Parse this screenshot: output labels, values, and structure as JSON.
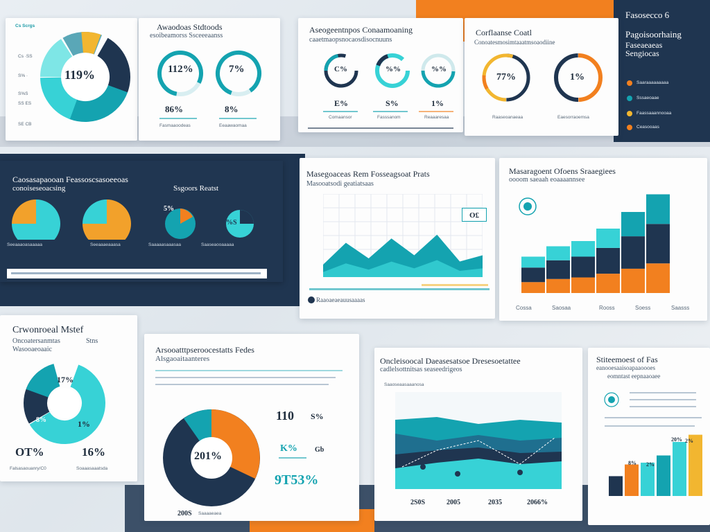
{
  "colors": {
    "navy": "#1f3550",
    "teal": "#14a3b0",
    "cyan": "#37d2d6",
    "orange": "#f2801f",
    "yellow": "#f2b630",
    "slate": "#5f7a93"
  },
  "card1": {
    "tag": "Cs Scrgs",
    "center": "119%",
    "labels": [
      "Cs ·SS",
      "S% ·",
      "S%S",
      "SS ES",
      "SE CB"
    ]
  },
  "card2": {
    "title": "Awaodoas Stdtoods",
    "subtitle": "esoibeamorss Ssceeeaanss",
    "gauge1": "112%",
    "gauge2": "7%",
    "value1": "86%",
    "value2": "8%",
    "caption1": "Fasmaaoodeas",
    "caption2": "Eeaawaomaa"
  },
  "card3": {
    "title": "Aseogeentnpos Conaamoaning",
    "subtitle": "caaetmaopsnocaosdisocnuuns",
    "g1": "C%",
    "g2": "%%",
    "g3": "%%",
    "v1": "E%",
    "v2": "S%",
    "v3": "1%",
    "c1": "Comaansor",
    "c2": "Fasssanom",
    "c3": "Reaaaresaa"
  },
  "card4": {
    "title": "Corflaanse Coatl",
    "subtitle": "Conoatesmosimtaaatmsoaodiine",
    "g1": "77%",
    "g2": "1%",
    "c1": "Raaseoanaeaa",
    "c2": "Eaesorraoemsa"
  },
  "card5": {
    "title": "Fasosecco 6",
    "subtitle": "Pagoisoorhaing",
    "subtitle2": "Faseaeaeas",
    "subtitle3": "Sengiocas",
    "legend": [
      "Saaraaaaaaaaa",
      "Sssaeoaae",
      "Faassaaannooaa",
      "Ceasooaas"
    ]
  },
  "card6": {
    "title": "Caosasapaooan Feassoscsasoeeoas",
    "subtitle": "conoiseseoacsing",
    "right": "Ssgoors Reatst",
    "pct": "5%",
    "pct2": "%S",
    "captions": [
      "Seeaaaoasaaaaa",
      "Seeaaaeaaasa",
      "Saaaaasaaasaa",
      "Saaseaooaaaaa"
    ]
  },
  "card7": {
    "title": "Masegoaceas Rem Fosseagsoat Prats",
    "subtitle": "Masooatsodi geatiatsaas",
    "badge": "O£",
    "footer": "Raaoaeaeauusaaaas"
  },
  "card8": {
    "title": "Masaragoent Ofoens Sraaegiees",
    "subtitle": "oooom saeaah eoaaaannsee",
    "xlabels": [
      "Cossa",
      "Saosaa",
      "Rooss",
      "Soess",
      "Saasss"
    ]
  },
  "card9": {
    "title": "Crwonroeal Mstef",
    "sub1": "Oncoatersanmtas",
    "sub1b": "Stns",
    "sub2": "Wasooaeoaaic",
    "v1": "17%",
    "v2": "1%",
    "v3": "8%",
    "big1": "OT%",
    "big2": "16%",
    "cap1": "Falsasaouanry/C0",
    "cap2": "Soaaasaaatsda"
  },
  "card10": {
    "title": "Arsooatttpseroocestatts Fedes",
    "subtitle": "Alsgaoaitaanteres",
    "center": "201%",
    "v1": "110",
    "v2": "S%",
    "v3": "K%",
    "v4": "Gb",
    "v5": "9T53%",
    "footer": "200S",
    "footer2": "Saaaaeaea"
  },
  "card11": {
    "title": "Oncleisoocal Daeasesatsoe Dresesoetattee",
    "subtitle": "cadlelsottnitsas seaseedrigeos",
    "tag": "Saaoseaasaaanosa",
    "xlabels": [
      "2S0S",
      "2005",
      "2035",
      "2066%"
    ]
  },
  "card12": {
    "title": "Stiteemoest of Fas",
    "subtitle": "eanooesaaisoapaaoooes",
    "subtitle2": "eomntast eepnaaoaee",
    "v1": "8%",
    "v2": "2%",
    "v3": "20%",
    "v4": "2%"
  },
  "chart_data": [
    {
      "type": "bar",
      "values": [
        0.35,
        0.45,
        0.5,
        0.62,
        0.78,
        0.95
      ],
      "series_colors": [
        "#f2801f",
        "#1f3550",
        "#37d2d6"
      ]
    },
    {
      "type": "area",
      "values": [
        0.2,
        0.55,
        0.3,
        0.62,
        0.35,
        0.68,
        0.25,
        0.35
      ]
    },
    {
      "type": "bar",
      "values": [
        0.22,
        0.35,
        0.37,
        0.45,
        0.6,
        0.68
      ]
    }
  ]
}
